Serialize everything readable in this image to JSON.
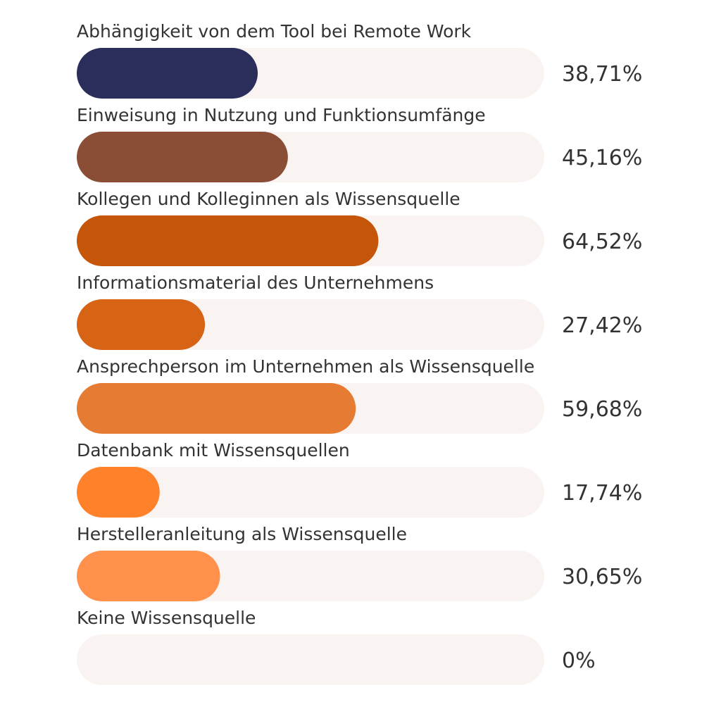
{
  "chart_data": {
    "type": "bar",
    "orientation": "horizontal",
    "categories": [
      "Abhängigkeit von dem Tool bei Remote Work",
      "Einweisung in Nutzung und Funktionsumfänge",
      "Kollegen und Kolleginnen als Wissensquelle",
      "Informationsmaterial des Unternehmens",
      "Ansprechperson im Unternehmen als Wissensquelle",
      "Datenbank mit Wissensquellen",
      "Herstelleranleitung als Wissensquelle",
      "Keine Wissensquelle"
    ],
    "values": [
      38.71,
      45.16,
      64.52,
      27.42,
      59.68,
      17.74,
      30.65,
      0
    ],
    "value_labels": [
      "38,71%",
      "45,16%",
      "64,52%",
      "27,42%",
      "59,68%",
      "17,74%",
      "30,65%",
      "0%"
    ],
    "colors": [
      "#2b2d5a",
      "#8a4d36",
      "#c55508",
      "#d66414",
      "#e67c34",
      "#ff822b",
      "#ff914d",
      "#f9f4f2"
    ],
    "track_color": "#f9f4f2",
    "xlim": [
      0,
      100
    ],
    "title": "",
    "xlabel": "",
    "ylabel": "",
    "grid": false,
    "legend": "none"
  }
}
